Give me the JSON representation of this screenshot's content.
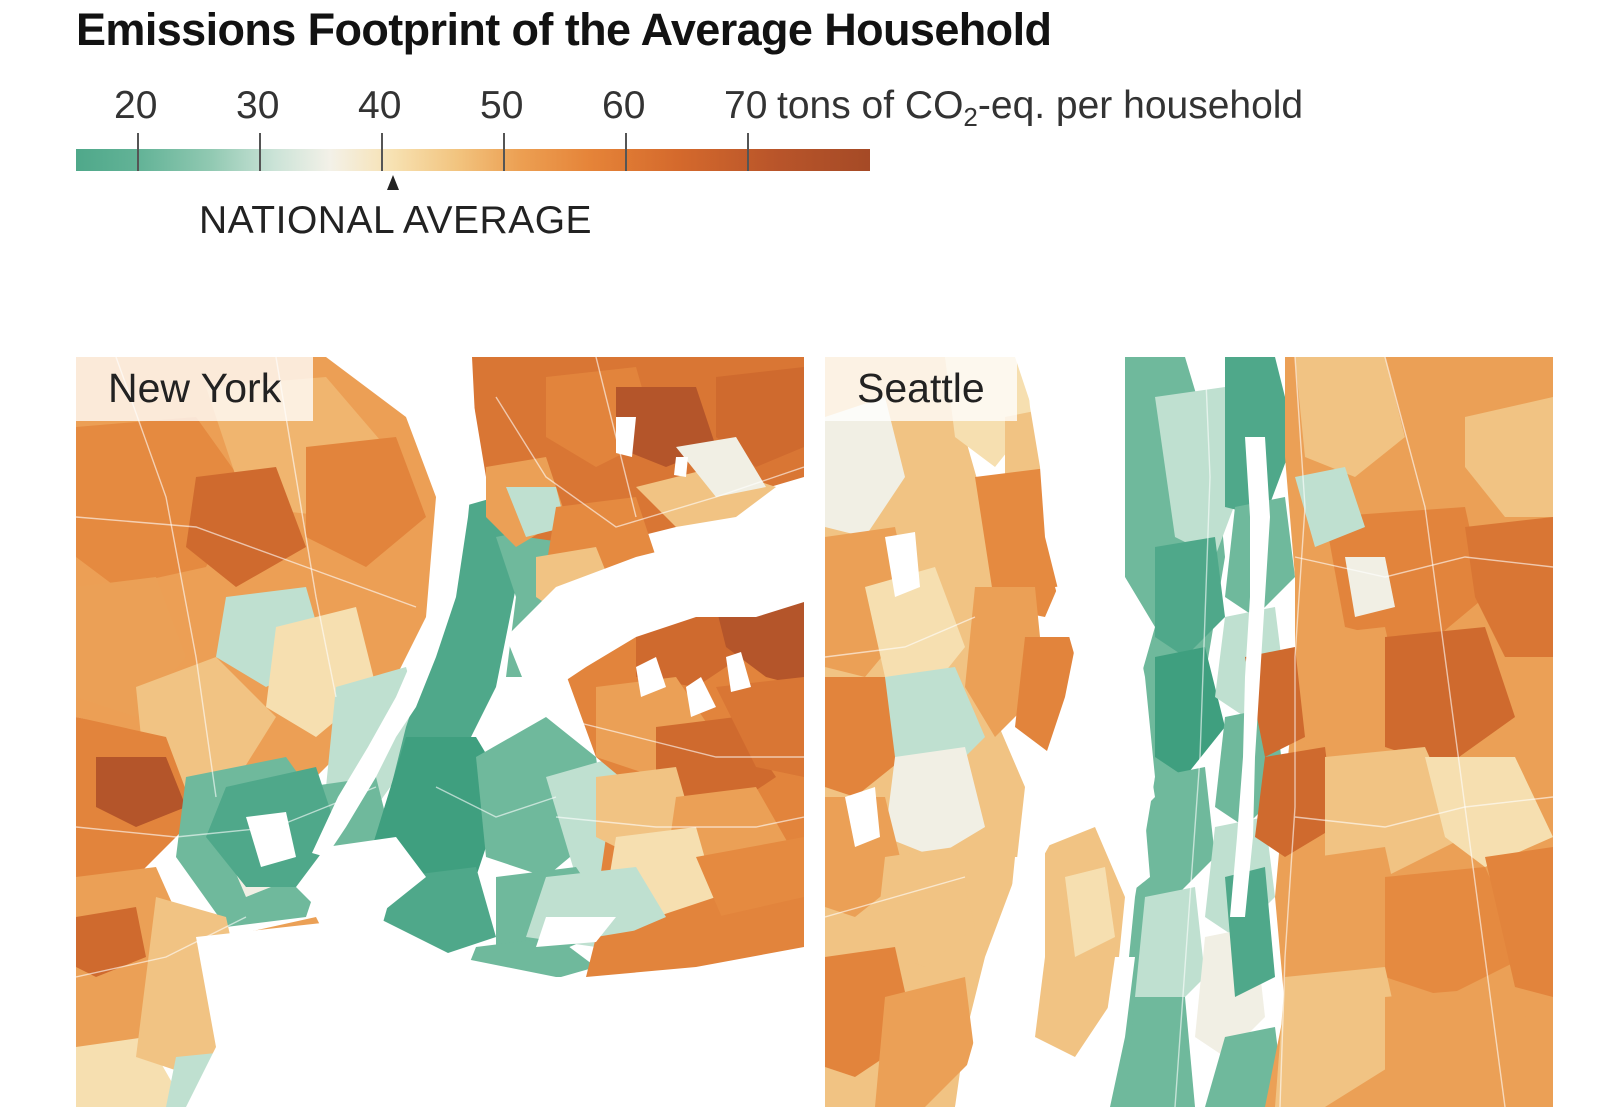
{
  "title": "Emissions Footprint of the Average Household",
  "legend": {
    "ticks": [
      "20",
      "30",
      "40",
      "50",
      "60",
      "70"
    ],
    "unit_main": "tons of CO",
    "unit_sub": "2",
    "unit_tail": "-eq. per household",
    "marker_label": "NATIONAL AVERAGE",
    "marker_value": 41,
    "range": [
      15,
      80
    ],
    "colors": {
      "low": "#4fa88a",
      "mid": "#f3f1e8",
      "high": "#a54a26"
    }
  },
  "maps": [
    {
      "label": "New York"
    },
    {
      "label": "Seattle"
    }
  ],
  "palette": {
    "green_dark": "#3f9f7f",
    "green": "#6fb99c",
    "green_light": "#bfe0d0",
    "neutral": "#f1efe4",
    "cream": "#f6dfb0",
    "tan": "#f1c383",
    "orange": "#eba056",
    "orange_dark": "#e2843c",
    "rust": "#cf6a2e",
    "rust_dark": "#b4552a"
  }
}
